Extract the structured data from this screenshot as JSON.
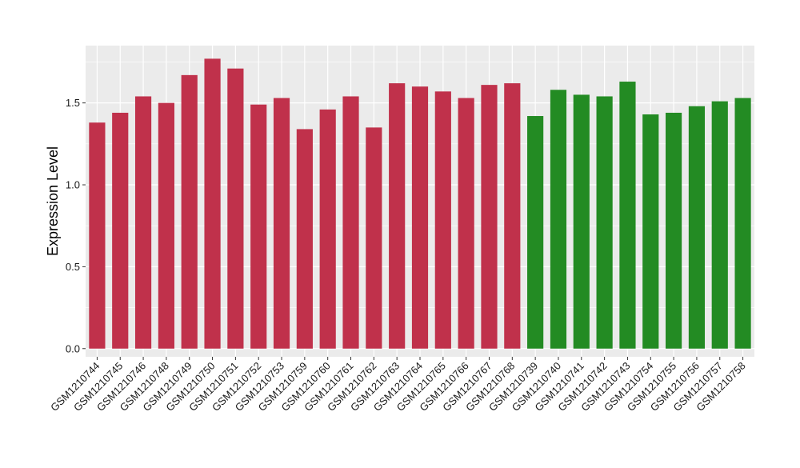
{
  "chart_data": {
    "type": "bar",
    "title": "",
    "xlabel": "",
    "ylabel": "Expression Level",
    "ylim": [
      -0.05,
      1.85
    ],
    "yticks": [
      "0.0",
      "0.5",
      "1.0",
      "1.5"
    ],
    "grid": true,
    "legend": "none",
    "colors": {
      "group_red": "#c0314b",
      "group_green": "#238b23",
      "panel": "#ebebeb",
      "gridline": "#ffffff"
    },
    "categories": [
      "GSM1210744",
      "GSM1210745",
      "GSM1210746",
      "GSM1210748",
      "GSM1210749",
      "GSM1210750",
      "GSM1210751",
      "GSM1210752",
      "GSM1210753",
      "GSM1210759",
      "GSM1210760",
      "GSM1210761",
      "GSM1210762",
      "GSM1210763",
      "GSM1210764",
      "GSM1210765",
      "GSM1210766",
      "GSM1210767",
      "GSM1210768",
      "GSM1210739",
      "GSM1210740",
      "GSM1210741",
      "GSM1210742",
      "GSM1210743",
      "GSM1210754",
      "GSM1210755",
      "GSM1210756",
      "GSM1210757",
      "GSM1210758"
    ],
    "values": [
      1.38,
      1.44,
      1.54,
      1.5,
      1.67,
      1.77,
      1.71,
      1.49,
      1.53,
      1.34,
      1.46,
      1.54,
      1.35,
      1.62,
      1.6,
      1.57,
      1.53,
      1.61,
      1.62,
      1.42,
      1.58,
      1.55,
      1.54,
      1.63,
      1.43,
      1.44,
      1.48,
      1.51,
      1.53
    ],
    "bar_groups": [
      "red",
      "red",
      "red",
      "red",
      "red",
      "red",
      "red",
      "red",
      "red",
      "red",
      "red",
      "red",
      "red",
      "red",
      "red",
      "red",
      "red",
      "red",
      "red",
      "green",
      "green",
      "green",
      "green",
      "green",
      "green",
      "green",
      "green",
      "green",
      "green"
    ]
  }
}
